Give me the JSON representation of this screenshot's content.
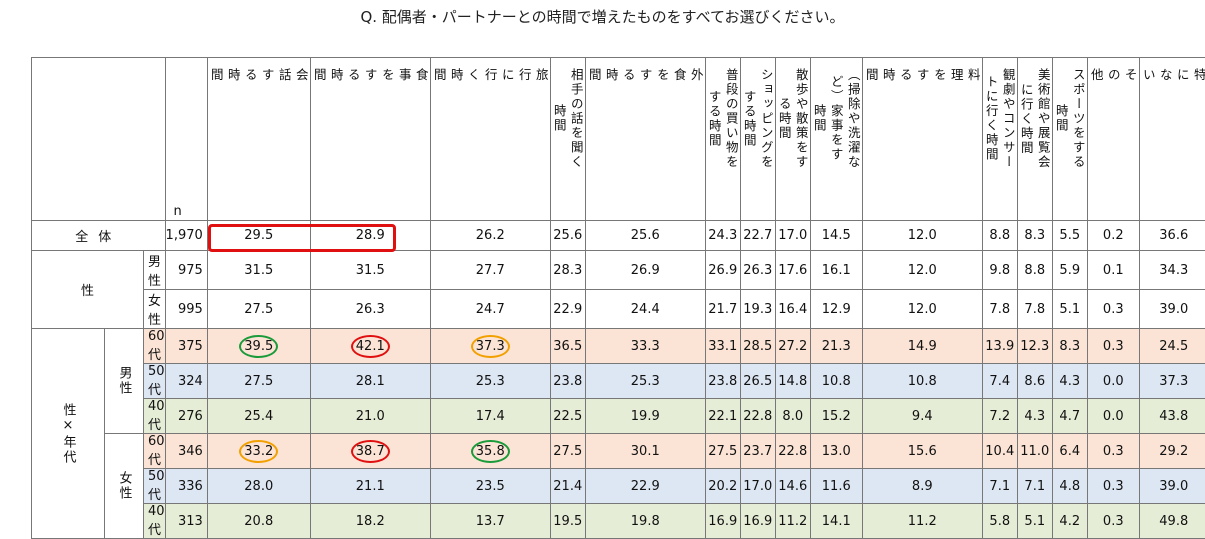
{
  "question": "Q. 配偶者・パートナーとの時間で増えたものをすべてお選びください。",
  "n_label": "n",
  "columns": [
    "会話する時間",
    "食事をする時間",
    "旅行に行く時間",
    "相手の話を聞く時間",
    "外食をする時間",
    "普段の買い物をする時間",
    "ショッピングをする時間",
    "散歩や散策をする時間",
    "（掃除や洗濯など家事をする時間）",
    "料理をする時間",
    "観劇やコンサートに行く時間",
    "美術館や展覧会に行く時間",
    "スポーツをする時間",
    "その他",
    "特にない"
  ],
  "col_display": [
    "会\n話\nす\nる\n時\n間",
    "食\n事\nを\nす\nる\n時\n間",
    "旅\n行\nに\n行\nく\n時\n間",
    "相手の話を聞く\n時間",
    "外\n食\nを\nす\nる\n時\n間",
    "普段の買い物を\nする時間",
    "ショッピングを\nする時間",
    "散歩や散策をす\nる時間",
    "（掃除や洗濯な\nど）家事をす\n時間",
    "料\n理\nを\nす\nる\n時\n間",
    "観劇やコンサー\nトに行く時間",
    "美術館や展覧会\nに行く時間",
    "スポーツをする\n時間",
    "そ\nの\n他",
    "特\nに\nな\nい"
  ],
  "labels": {
    "total": "全体",
    "gender": "性",
    "male": "男性",
    "female": "女性",
    "gender_age": "性×年代",
    "age60": "60代",
    "age50": "50代",
    "age40": "40代"
  },
  "rows": {
    "total": {
      "n": "1,970",
      "v": [
        "29.5",
        "28.9",
        "26.2",
        "25.6",
        "25.6",
        "24.3",
        "22.7",
        "17.0",
        "14.5",
        "12.0",
        "8.8",
        "8.3",
        "5.5",
        "0.2",
        "36.6"
      ]
    },
    "male": {
      "n": "975",
      "v": [
        "31.5",
        "31.5",
        "27.7",
        "28.3",
        "26.9",
        "26.9",
        "26.3",
        "17.6",
        "16.1",
        "12.0",
        "9.8",
        "8.8",
        "5.9",
        "0.1",
        "34.3"
      ]
    },
    "female": {
      "n": "995",
      "v": [
        "27.5",
        "26.3",
        "24.7",
        "22.9",
        "24.4",
        "21.7",
        "19.3",
        "16.4",
        "12.9",
        "12.0",
        "7.8",
        "7.8",
        "5.1",
        "0.3",
        "39.0"
      ]
    },
    "m60": {
      "n": "375",
      "v": [
        "39.5",
        "42.1",
        "37.3",
        "36.5",
        "33.3",
        "33.1",
        "28.5",
        "27.2",
        "21.3",
        "14.9",
        "13.9",
        "12.3",
        "8.3",
        "0.3",
        "24.5"
      ]
    },
    "m50": {
      "n": "324",
      "v": [
        "27.5",
        "28.1",
        "25.3",
        "23.8",
        "25.3",
        "23.8",
        "26.5",
        "14.8",
        "10.8",
        "10.8",
        "7.4",
        "8.6",
        "4.3",
        "0.0",
        "37.3"
      ]
    },
    "m40": {
      "n": "276",
      "v": [
        "25.4",
        "21.0",
        "17.4",
        "22.5",
        "19.9",
        "22.1",
        "22.8",
        "8.0",
        "15.2",
        "9.4",
        "7.2",
        "4.3",
        "4.7",
        "0.0",
        "43.8"
      ]
    },
    "f60": {
      "n": "346",
      "v": [
        "33.2",
        "38.7",
        "35.8",
        "27.5",
        "30.1",
        "27.5",
        "23.7",
        "22.8",
        "13.0",
        "15.6",
        "10.4",
        "11.0",
        "6.4",
        "0.3",
        "29.2"
      ]
    },
    "f50": {
      "n": "336",
      "v": [
        "28.0",
        "21.1",
        "23.5",
        "21.4",
        "22.9",
        "20.2",
        "17.0",
        "14.6",
        "11.6",
        "8.9",
        "7.1",
        "7.1",
        "4.8",
        "0.3",
        "39.0"
      ]
    },
    "f40": {
      "n": "313",
      "v": [
        "20.8",
        "18.2",
        "13.7",
        "19.5",
        "19.8",
        "16.9",
        "16.9",
        "11.2",
        "14.1",
        "11.2",
        "5.8",
        "5.1",
        "4.2",
        "0.3",
        "49.8"
      ]
    }
  },
  "highlights": {
    "m60": {
      "0": "green",
      "1": "red",
      "2": "orange"
    },
    "f60": {
      "0": "orange",
      "1": "red",
      "2": "green"
    }
  },
  "colors": {
    "row60": "#fbe4d5",
    "row50": "#dde6f3",
    "row40": "#e6edd6",
    "highlight_box": "#e01010"
  }
}
